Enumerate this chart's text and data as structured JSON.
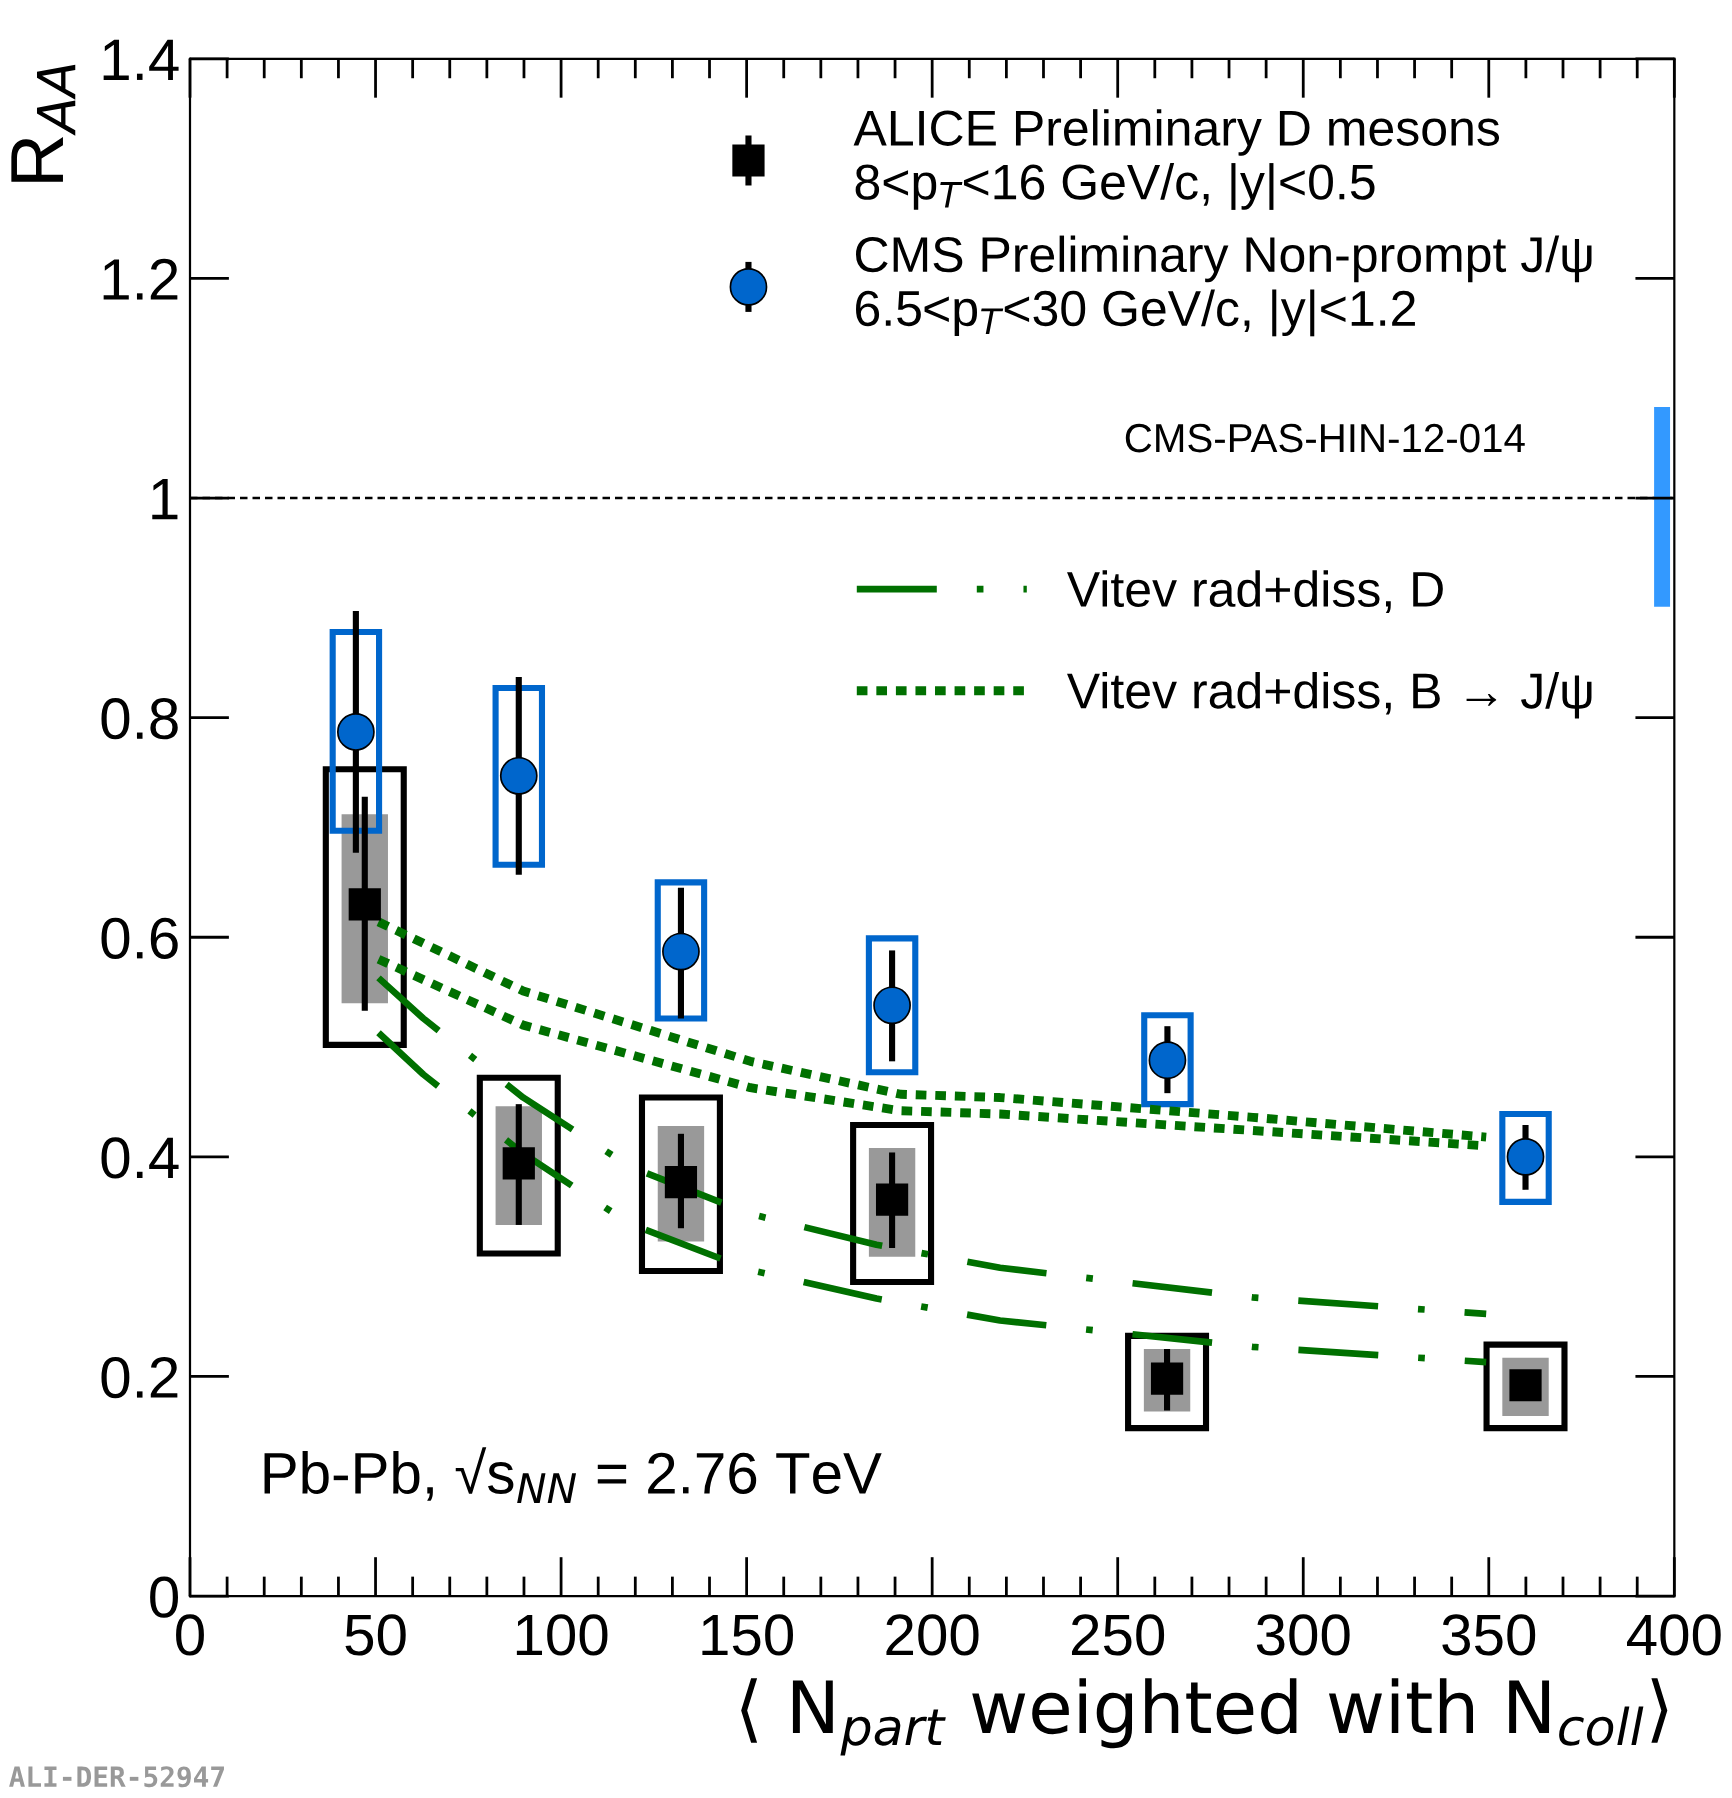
{
  "chart_data": {
    "type": "scatter",
    "xlabel": "⟨ N$_{part}$ weighted with N$_{coll}$⟩",
    "ylabel": "R$_{AA}$",
    "xlim": [
      0,
      400
    ],
    "ylim": [
      0,
      1.4
    ],
    "xticks": [
      0,
      50,
      100,
      150,
      200,
      250,
      300,
      350,
      400
    ],
    "yticks": [
      0,
      0.2,
      0.4,
      0.6,
      0.8,
      1,
      1.2,
      1.4
    ],
    "grid": false,
    "legend": "top right",
    "ref_lines": [
      {
        "axis": "y",
        "value": 1,
        "color": "#000000",
        "line_style": "dashed"
      }
    ],
    "annotations": [
      "CMS-PAS-HIN-12-014",
      "Pb-Pb, √s$_{NN}$ = 2.76 TeV",
      "ALI-DER-52947"
    ],
    "series": [
      {
        "type": "bar",
        "color": "#000000",
        "line_style": "solid",
        "x": [
          47.1,
          88.6,
          132.3,
          189.2,
          263.3,
          359.9
        ],
        "base": [
          0.502,
          0.312,
          0.296,
          0.286,
          0.153,
          0.153
        ],
        "values": [
          0.251,
          0.16,
          0.158,
          0.143,
          0.084,
          0.076
        ]
      },
      {
        "type": "bar",
        "color": "#999999",
        "x": [
          47.1,
          88.6,
          132.3,
          189.2,
          263.3,
          359.9
        ],
        "base": [
          0.54,
          0.338,
          0.323,
          0.309,
          0.168,
          0.164
        ],
        "values": [
          0.172,
          0.108,
          0.105,
          0.099,
          0.057,
          0.053
        ]
      },
      {
        "type": "bar",
        "color": "#0066cc",
        "line_style": "solid",
        "x": [
          44.7,
          88.6,
          132.3,
          189.2,
          263.4,
          359.9
        ],
        "base": [
          0.697,
          0.666,
          0.526,
          0.477,
          0.448,
          0.359
        ],
        "values": [
          0.181,
          0.161,
          0.124,
          0.122,
          0.081,
          0.08
        ]
      },
      {
        "type": "bar",
        "color": "#3399ff",
        "x": [
          396.7
        ],
        "base": [
          0.901
        ],
        "values": [
          0.182
        ]
      },
      {
        "type": "line",
        "name": "Vitev rad+diss, D",
        "color": "#007000",
        "line_style": "dashed",
        "x": [
          50.8,
          62.9,
          89.8,
          118.6,
          151,
          185,
          218.3,
          286.4,
          349.3
        ],
        "values": [
          0.563,
          0.526,
          0.454,
          0.391,
          0.348,
          0.32,
          0.299,
          0.272,
          0.257
        ]
      },
      {
        "type": "line",
        "color": "#007000",
        "line_style": "dashed",
        "x": [
          50.8,
          62.9,
          89.8,
          118.6,
          151,
          185,
          218.3,
          286.4,
          349.3
        ],
        "values": [
          0.513,
          0.475,
          0.403,
          0.339,
          0.297,
          0.271,
          0.251,
          0.227,
          0.213
        ]
      },
      {
        "type": "line",
        "name": "Vitev rad+diss, B → J/ψ",
        "color": "#007000",
        "line_style": "dotted",
        "x": [
          50.8,
          89.8,
          151,
          191.5,
          218.3,
          286.4,
          349.3
        ],
        "values": [
          0.614,
          0.551,
          0.487,
          0.457,
          0.454,
          0.436,
          0.418
        ]
      },
      {
        "type": "line",
        "color": "#007000",
        "line_style": "dotted",
        "x": [
          50.8,
          89.8,
          151,
          191.5,
          218.3,
          286.4,
          349.3
        ],
        "values": [
          0.58,
          0.52,
          0.463,
          0.442,
          0.439,
          0.424,
          0.41
        ]
      },
      {
        "name": "ALICE Preliminary D mesons\n8<p$_{T}$<16 GeV/c, |y|<0.5",
        "color": "#000000",
        "marker": "square",
        "x": [
          47.1,
          88.6,
          132.3,
          189.2,
          263.3,
          359.9
        ],
        "values": [
          0.63,
          0.394,
          0.377,
          0.361,
          0.198,
          0.192
        ],
        "errors": [
          [
            0.533,
            0.728
          ],
          [
            0.338,
            0.448
          ],
          [
            0.335,
            0.421
          ],
          [
            0.317,
            0.404
          ],
          [
            0.169,
            0.225
          ],
          null
        ]
      },
      {
        "name": "CMS Preliminary Non-prompt J/ψ\n6.5<p$_{T}$<30 GeV/c, |y|<1.2",
        "color": "#0066cc",
        "marker": "circle",
        "x": [
          44.7,
          88.6,
          132.3,
          189.2,
          263.4,
          359.9
        ],
        "values": [
          0.787,
          0.747,
          0.587,
          0.538,
          0.488,
          0.4
        ],
        "errors": [
          [
            0.677,
            0.897
          ],
          [
            0.657,
            0.837
          ],
          [
            0.526,
            0.645
          ],
          [
            0.487,
            0.588
          ],
          [
            0.458,
            0.519
          ],
          [
            0.37,
            0.429
          ]
        ]
      }
    ]
  }
}
